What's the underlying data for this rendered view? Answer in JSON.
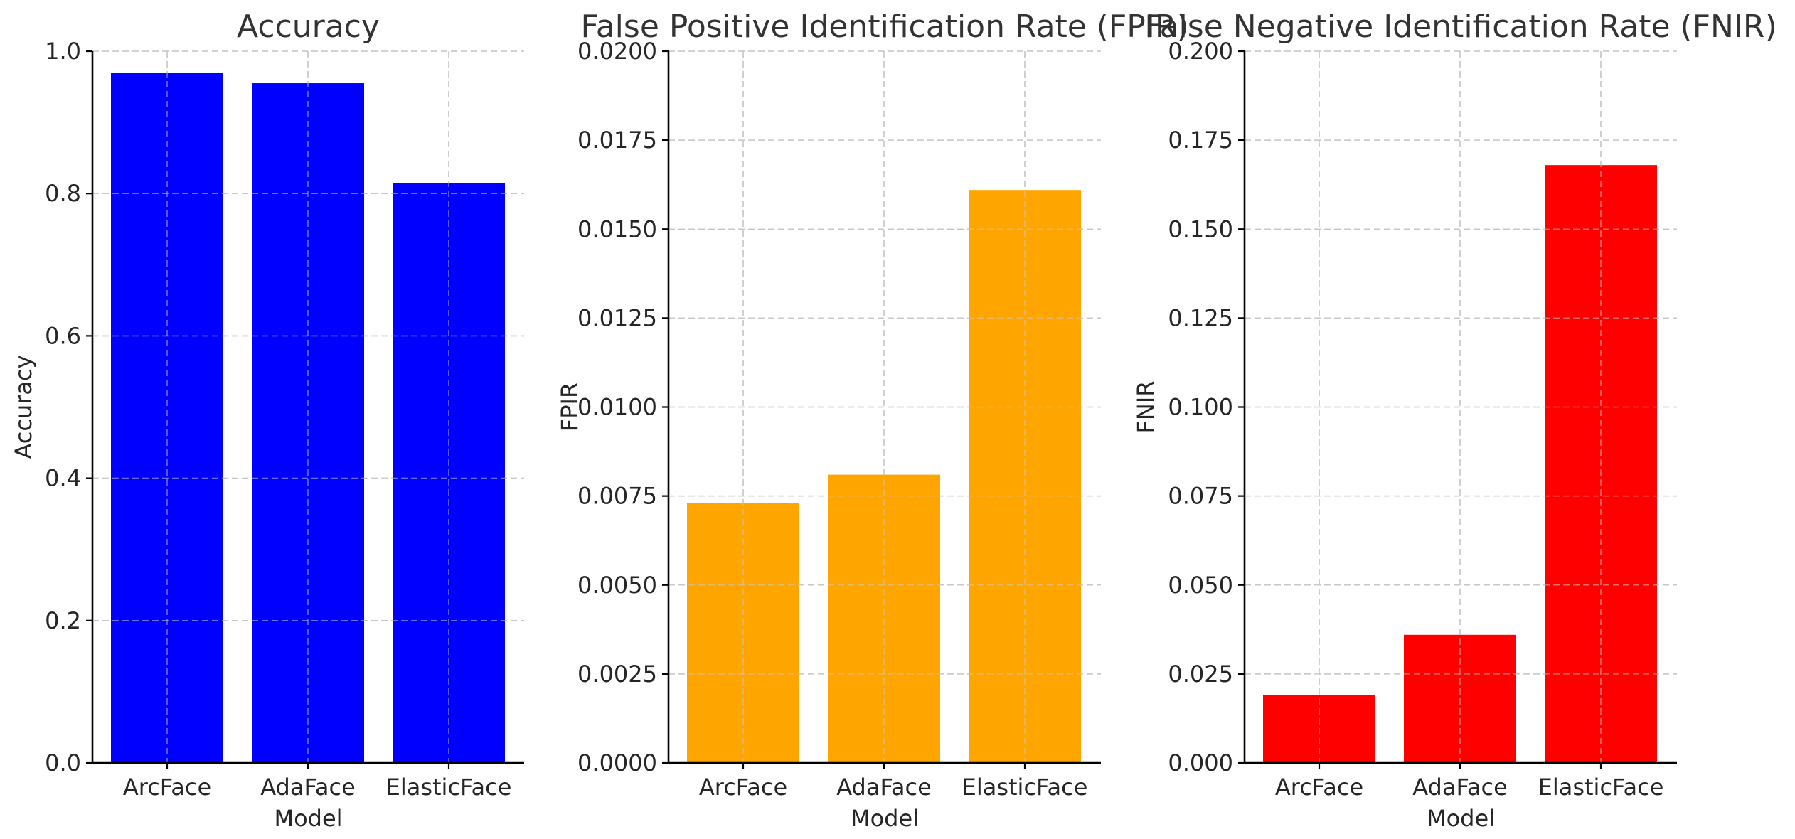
{
  "chart_data": [
    {
      "type": "bar",
      "title": "Accuracy",
      "xlabel": "Model",
      "ylabel": "Accuracy",
      "categories": [
        "ArcFace",
        "AdaFace",
        "ElasticFace"
      ],
      "values": [
        0.97,
        0.955,
        0.815
      ],
      "ylim": [
        0,
        1.0
      ],
      "yticks": [
        "0.0",
        "0.2",
        "0.4",
        "0.6",
        "0.8",
        "1.0"
      ],
      "color": "#0000ff",
      "grid": true
    },
    {
      "type": "bar",
      "title": "False Positive Identification Rate (FPIR)",
      "xlabel": "Model",
      "ylabel": "FPIR",
      "categories": [
        "ArcFace",
        "AdaFace",
        "ElasticFace"
      ],
      "values": [
        0.0073,
        0.0081,
        0.0161
      ],
      "ylim": [
        0,
        0.02
      ],
      "yticks": [
        "0.0000",
        "0.0025",
        "0.0050",
        "0.0075",
        "0.0100",
        "0.0125",
        "0.0150",
        "0.0175",
        "0.0200"
      ],
      "color": "#ffa500",
      "grid": true
    },
    {
      "type": "bar",
      "title": "False Negative Identification Rate (FNIR)",
      "xlabel": "Model",
      "ylabel": "FNIR",
      "categories": [
        "ArcFace",
        "AdaFace",
        "ElasticFace"
      ],
      "values": [
        0.019,
        0.036,
        0.168
      ],
      "ylim": [
        0,
        0.2
      ],
      "yticks": [
        "0.000",
        "0.025",
        "0.050",
        "0.075",
        "0.100",
        "0.125",
        "0.150",
        "0.175",
        "0.200"
      ],
      "color": "#ff0000",
      "grid": true
    }
  ]
}
